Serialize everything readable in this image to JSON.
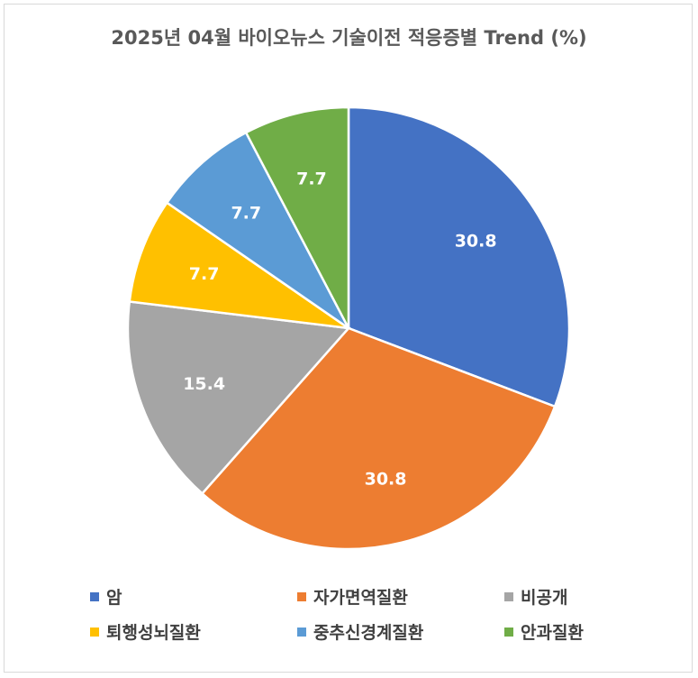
{
  "chart_data": {
    "type": "pie",
    "title": "2025년 04월 바이오뉴스 기술이전 적응증별 Trend (%)",
    "categories": [
      "암",
      "자가면역질환",
      "비공개",
      "퇴행성뇌질환",
      "중추신경계질환",
      "안과질환"
    ],
    "values": [
      30.8,
      30.8,
      15.4,
      7.7,
      7.7,
      7.7
    ],
    "data_labels": [
      "30.8",
      "30.8",
      "15.4",
      "7.7",
      "7.7",
      "7.7"
    ],
    "colors": [
      "#4472C4",
      "#ED7D31",
      "#A5A5A5",
      "#FFC000",
      "#5B9BD5",
      "#70AD47"
    ],
    "start_angle_deg": 0,
    "direction": "clockwise",
    "legend_position": "bottom"
  }
}
